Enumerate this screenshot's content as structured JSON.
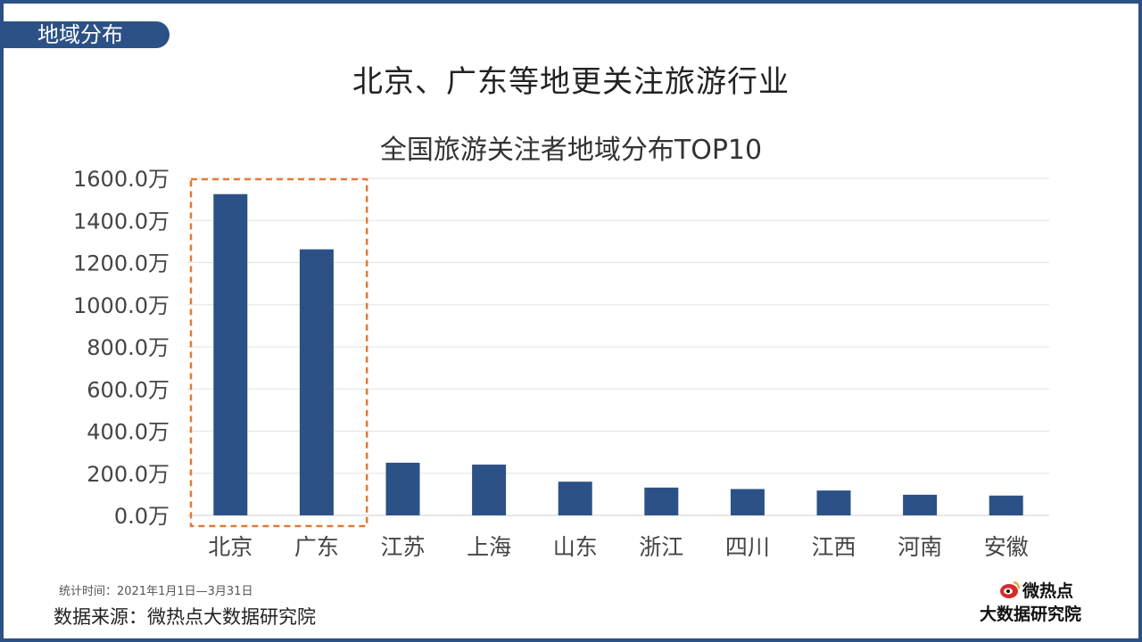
{
  "section_tag": "地域分布",
  "headline": "北京、广东等地更关注旅游行业",
  "footnote": "统计时间：2021年1月1日—3月31日",
  "source": "数据来源：微热点大数据研究院",
  "logo": {
    "name": "微热点",
    "subtitle": "大数据研究院"
  },
  "colors": {
    "accent": "#2b5186",
    "highlight_box": "#e07b39"
  },
  "chart_data": {
    "type": "bar",
    "title": "全国旅游关注者地域分布TOP10",
    "unit": "万",
    "categories": [
      "北京",
      "广东",
      "江苏",
      "上海",
      "山东",
      "浙江",
      "四川",
      "江西",
      "河南",
      "安徽"
    ],
    "values": [
      1525,
      1263,
      250,
      241,
      160,
      132,
      125,
      118,
      98,
      94
    ],
    "ylim": [
      0,
      1600
    ],
    "yticks": [
      "0.0万",
      "200.0万",
      "400.0万",
      "600.0万",
      "800.0万",
      "1000.0万",
      "1200.0万",
      "1400.0万",
      "1600.0万"
    ],
    "grid": true,
    "highlighted_categories": [
      "北京",
      "广东"
    ]
  }
}
